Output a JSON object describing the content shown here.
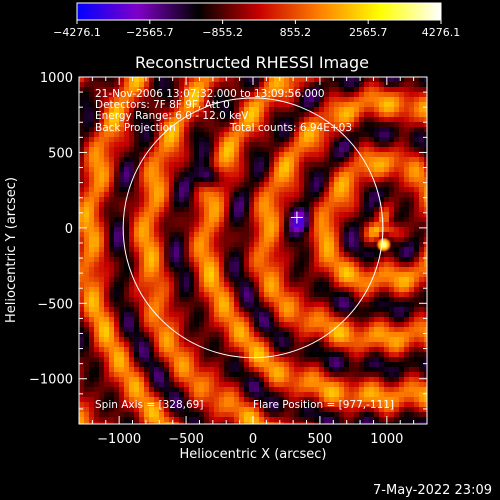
{
  "chart_data": {
    "type": "heatmap",
    "title": "Reconstructed RHESSI Image",
    "xlabel": "Heliocentric X (arcsec)",
    "ylabel": "Heliocentric Y (arcsec)",
    "xlim": [
      -1300,
      1300
    ],
    "ylim": [
      -1300,
      1000
    ],
    "xticks": [
      -1000,
      -500,
      0,
      500,
      1000
    ],
    "yticks": [
      -1000,
      -500,
      0,
      500,
      1000
    ],
    "colorbar": {
      "min": -4276.1,
      "max": 4276.1,
      "tick_labels": [
        "−4276.1",
        "−2565.7",
        "−855.2",
        "855.2",
        "2565.7",
        "4276.1"
      ],
      "colors": [
        "#0000ff",
        "#8000c8",
        "#000000",
        "#c80000",
        "#ff8000",
        "#ffff00",
        "#ffffff"
      ]
    },
    "annotations": {
      "time_range": "21-Nov-2006 13:07:32.000 to 13:09:56.000",
      "detectors": "Detectors: 7F 8F 9F, Att 0",
      "energy_range": "Energy Range: 6.0 - 12.0 keV",
      "method": "Back Projection",
      "total_counts": "Total counts: 6.94E+03",
      "spin_axis": "Spin Axis = [328,69]",
      "flare_position": "Flare Position = [977,-111]"
    },
    "solar_disk_center": [
      0,
      0
    ],
    "solar_disk_radius": 970,
    "spin_axis_marker": [
      328,
      69
    ],
    "flare_source": {
      "x": 977,
      "y": -111,
      "value": 4276.1
    },
    "features": [
      {
        "x": -330,
        "y": 250,
        "value": -3200
      },
      {
        "x": 380,
        "y": -80,
        "value": -1800
      }
    ]
  },
  "footer": {
    "timestamp": "7-May-2022 23:09"
  }
}
